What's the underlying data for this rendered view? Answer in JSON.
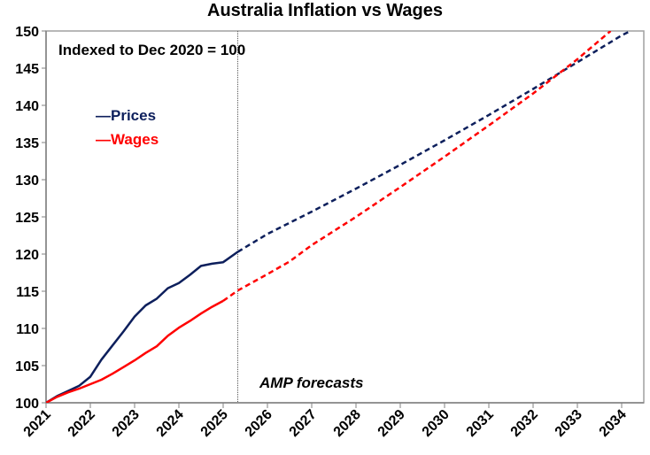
{
  "chart_data": {
    "type": "line",
    "title": "Australia Inflation vs Wages",
    "xlabel": "",
    "ylabel": "",
    "xlim": [
      2021,
      2034.5
    ],
    "ylim": [
      100,
      150
    ],
    "x_ticks": [
      "2021",
      "2022",
      "2023",
      "2024",
      "2025",
      "2026",
      "2027",
      "2028",
      "2029",
      "2030",
      "2031",
      "2032",
      "2033",
      "2034"
    ],
    "y_ticks": [
      100,
      105,
      110,
      115,
      120,
      125,
      130,
      135,
      140,
      145,
      150
    ],
    "grid": false,
    "legend_position": "top-left",
    "forecast_start": 2025.33,
    "annotations": {
      "index_note": "Indexed to Dec 2020 = 100",
      "forecast_note": "AMP forecasts"
    },
    "series": [
      {
        "name": "Prices",
        "color": "#0d1f5c",
        "actual": {
          "x": [
            2021.0,
            2021.25,
            2021.5,
            2021.75,
            2022.0,
            2022.25,
            2022.5,
            2022.75,
            2023.0,
            2023.25,
            2023.5,
            2023.75,
            2024.0,
            2024.25,
            2024.5,
            2024.75,
            2025.0,
            2025.33
          ],
          "y": [
            100.0,
            100.9,
            101.6,
            102.3,
            103.5,
            105.8,
            107.7,
            109.6,
            111.6,
            113.1,
            114.0,
            115.4,
            116.1,
            117.2,
            118.4,
            118.7,
            118.9,
            120.3
          ]
        },
        "forecast": {
          "x": [
            2025.33,
            2026,
            2027,
            2028,
            2029,
            2030,
            2031,
            2032,
            2033,
            2034,
            2034.2
          ],
          "y": [
            120.3,
            122.7,
            125.7,
            128.8,
            132.0,
            135.3,
            138.7,
            142.2,
            145.8,
            149.4,
            150.0
          ]
        }
      },
      {
        "name": "Wages",
        "color": "#ff0000",
        "actual": {
          "x": [
            2021.0,
            2021.25,
            2021.5,
            2021.75,
            2022.0,
            2022.25,
            2022.5,
            2022.75,
            2023.0,
            2023.25,
            2023.5,
            2023.75,
            2024.0,
            2024.25,
            2024.5,
            2024.75,
            2025.0
          ],
          "y": [
            100.0,
            100.8,
            101.4,
            101.9,
            102.5,
            103.1,
            103.9,
            104.8,
            105.7,
            106.7,
            107.6,
            109.0,
            110.1,
            111.0,
            112.0,
            112.9,
            113.7
          ]
        },
        "forecast": {
          "x": [
            2025.0,
            2025.33,
            2026,
            2026.5,
            2027,
            2028,
            2029,
            2030,
            2031,
            2032,
            2033,
            2033.75
          ],
          "y": [
            113.7,
            115.1,
            117.3,
            119.0,
            121.2,
            125.0,
            129.0,
            133.1,
            137.3,
            141.6,
            146.2,
            150.0
          ]
        }
      }
    ]
  }
}
